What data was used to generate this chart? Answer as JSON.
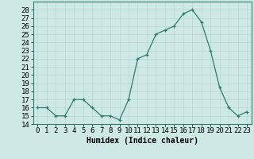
{
  "x": [
    0,
    1,
    2,
    3,
    4,
    5,
    6,
    7,
    8,
    9,
    10,
    11,
    12,
    13,
    14,
    15,
    16,
    17,
    18,
    19,
    20,
    21,
    22,
    23
  ],
  "y": [
    16,
    16,
    15,
    15,
    17,
    17,
    16,
    15,
    15,
    14.5,
    17,
    22,
    22.5,
    25,
    25.5,
    26,
    27.5,
    28,
    26.5,
    23,
    18.5,
    16,
    15,
    15.5
  ],
  "xlabel": "Humidex (Indice chaleur)",
  "ylim": [
    14,
    29
  ],
  "yticks": [
    14,
    15,
    16,
    17,
    18,
    19,
    20,
    21,
    22,
    23,
    24,
    25,
    26,
    27,
    28
  ],
  "xlim": [
    -0.5,
    23.5
  ],
  "xtick_labels": [
    "0",
    "1",
    "2",
    "3",
    "4",
    "5",
    "6",
    "7",
    "8",
    "9",
    "10",
    "11",
    "12",
    "13",
    "14",
    "15",
    "16",
    "17",
    "18",
    "19",
    "20",
    "21",
    "22",
    "23"
  ],
  "line_color": "#2d7d6e",
  "marker": "+",
  "bg_color": "#cde8e5",
  "grid_color": "#b8d8d4",
  "label_fontsize": 7,
  "tick_fontsize": 6.5
}
